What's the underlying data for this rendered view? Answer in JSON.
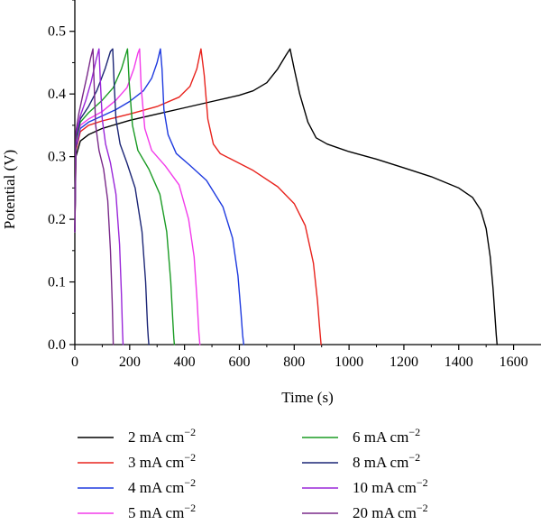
{
  "chart_data": {
    "type": "line",
    "xlabel": "Time (s)",
    "ylabel": "Potential (V)",
    "xlim": [
      0,
      1700
    ],
    "ylim": [
      0,
      0.55
    ],
    "xticks": [
      0,
      200,
      400,
      600,
      800,
      1000,
      1200,
      1400,
      1600
    ],
    "yticks": [
      0.0,
      0.1,
      0.2,
      0.3,
      0.4,
      0.5
    ],
    "xtick_labels": [
      "0",
      "200",
      "400",
      "600",
      "800",
      "1000",
      "1200",
      "1400",
      "1600"
    ],
    "ytick_labels": [
      "0.0",
      "0.1",
      "0.2",
      "0.3",
      "0.4",
      "0.5"
    ],
    "grid": false,
    "legend_position": "bottom, two columns",
    "series": [
      {
        "name": "2 mA cm",
        "sup": "−2",
        "color": "#000000",
        "x": [
          0,
          4,
          20,
          50,
          100,
          200,
          300,
          400,
          500,
          600,
          650,
          700,
          740,
          770,
          785,
          800,
          820,
          850,
          880,
          920,
          1000,
          1100,
          1200,
          1300,
          1400,
          1450,
          1480,
          1500,
          1515,
          1525,
          1533,
          1537,
          1540
        ],
        "y": [
          0.18,
          0.3,
          0.325,
          0.335,
          0.345,
          0.358,
          0.368,
          0.378,
          0.388,
          0.398,
          0.405,
          0.418,
          0.44,
          0.462,
          0.472,
          0.44,
          0.4,
          0.355,
          0.33,
          0.32,
          0.308,
          0.296,
          0.282,
          0.268,
          0.25,
          0.235,
          0.215,
          0.185,
          0.14,
          0.09,
          0.04,
          0.015,
          0.0
        ]
      },
      {
        "name": "3 mA cm",
        "sup": "−2",
        "color": "#e8231d",
        "x": [
          0,
          4,
          20,
          50,
          100,
          200,
          300,
          380,
          420,
          445,
          460,
          472,
          485,
          505,
          530,
          570,
          650,
          740,
          800,
          840,
          870,
          885,
          892,
          896,
          898
        ],
        "y": [
          0.18,
          0.31,
          0.34,
          0.35,
          0.357,
          0.368,
          0.38,
          0.395,
          0.412,
          0.44,
          0.472,
          0.43,
          0.36,
          0.32,
          0.305,
          0.296,
          0.278,
          0.252,
          0.225,
          0.19,
          0.13,
          0.07,
          0.03,
          0.01,
          0.0
        ]
      },
      {
        "name": "4 mA cm",
        "sup": "−2",
        "color": "#1e3adf",
        "x": [
          0,
          4,
          20,
          50,
          100,
          150,
          200,
          250,
          280,
          300,
          312,
          318,
          325,
          340,
          370,
          420,
          480,
          540,
          575,
          595,
          606,
          612,
          616
        ],
        "y": [
          0.18,
          0.315,
          0.345,
          0.355,
          0.365,
          0.375,
          0.388,
          0.405,
          0.425,
          0.45,
          0.472,
          0.44,
          0.375,
          0.335,
          0.305,
          0.286,
          0.262,
          0.22,
          0.17,
          0.11,
          0.05,
          0.015,
          0.0
        ]
      },
      {
        "name": "5 mA cm",
        "sup": "−2",
        "color": "#f23bea",
        "x": [
          0,
          4,
          20,
          50,
          100,
          150,
          190,
          215,
          230,
          236,
          242,
          255,
          280,
          330,
          380,
          415,
          435,
          446,
          452,
          456
        ],
        "y": [
          0.18,
          0.32,
          0.35,
          0.36,
          0.372,
          0.39,
          0.41,
          0.44,
          0.465,
          0.472,
          0.41,
          0.345,
          0.31,
          0.285,
          0.255,
          0.2,
          0.14,
          0.07,
          0.02,
          0.0
        ]
      },
      {
        "name": "6 mA cm",
        "sup": "−2",
        "color": "#1a9b24",
        "x": [
          0,
          4,
          20,
          50,
          100,
          140,
          170,
          185,
          192,
          198,
          210,
          230,
          270,
          310,
          335,
          350,
          357,
          361,
          363
        ],
        "y": [
          0.18,
          0.325,
          0.355,
          0.37,
          0.39,
          0.41,
          0.44,
          0.462,
          0.472,
          0.42,
          0.35,
          0.31,
          0.28,
          0.24,
          0.18,
          0.1,
          0.04,
          0.01,
          0.0
        ]
      },
      {
        "name": "8 mA cm",
        "sup": "−2",
        "color": "#1c2676",
        "x": [
          0,
          4,
          20,
          50,
          80,
          110,
          130,
          138,
          143,
          150,
          165,
          190,
          220,
          245,
          258,
          265,
          268,
          270
        ],
        "y": [
          0.18,
          0.33,
          0.36,
          0.38,
          0.405,
          0.44,
          0.468,
          0.472,
          0.42,
          0.36,
          0.32,
          0.29,
          0.25,
          0.18,
          0.1,
          0.03,
          0.01,
          0.0
        ]
      },
      {
        "name": "10 mA cm",
        "sup": "−2",
        "color": "#9a27d9",
        "x": [
          0,
          4,
          20,
          40,
          60,
          78,
          88,
          93,
          100,
          112,
          130,
          150,
          163,
          170,
          174,
          176
        ],
        "y": [
          0.18,
          0.335,
          0.365,
          0.39,
          0.42,
          0.455,
          0.472,
          0.42,
          0.36,
          0.32,
          0.29,
          0.24,
          0.16,
          0.08,
          0.02,
          0.0
        ]
      },
      {
        "name": "20 mA cm",
        "sup": "−2",
        "color": "#7a2a8a",
        "x": [
          0,
          4,
          15,
          30,
          45,
          58,
          66,
          70,
          76,
          88,
          105,
          120,
          130,
          136,
          139,
          140
        ],
        "y": [
          0.18,
          0.34,
          0.37,
          0.4,
          0.43,
          0.458,
          0.472,
          0.42,
          0.35,
          0.31,
          0.28,
          0.23,
          0.15,
          0.07,
          0.02,
          0.0
        ]
      }
    ]
  }
}
